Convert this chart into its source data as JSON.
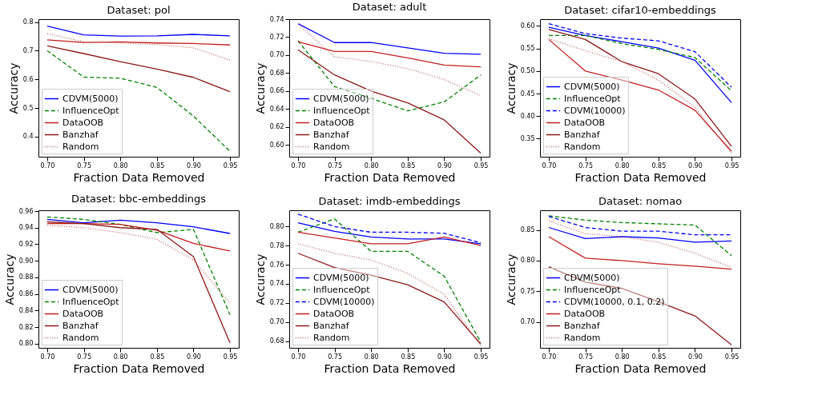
{
  "chart_data": [
    {
      "type": "line",
      "title": "Dataset: pol",
      "xlabel": "Fraction Data Removed",
      "ylabel": "Accuracy",
      "x": [
        0.7,
        0.75,
        0.8,
        0.85,
        0.9,
        0.95
      ],
      "xlim": [
        0.688,
        0.962
      ],
      "xticks": [
        {
          "value": 0.7,
          "label": "0.70"
        },
        {
          "value": 0.75,
          "label": "0.75"
        },
        {
          "value": 0.8,
          "label": "0.80"
        },
        {
          "value": 0.85,
          "label": "0.85"
        },
        {
          "value": 0.9,
          "label": "0.90"
        },
        {
          "value": 0.95,
          "label": "0.95"
        }
      ],
      "ylim": [
        0.33,
        0.81
      ],
      "yticks": [
        0.4,
        0.5,
        0.6,
        0.7,
        0.8
      ],
      "legend": "bottom left",
      "grid": false,
      "series": [
        {
          "name": "CDVM(5000)",
          "color": "#0000ff",
          "line_style": "solid",
          "values": [
            0.786,
            0.755,
            0.751,
            0.752,
            0.757,
            0.752
          ]
        },
        {
          "name": "InfluenceOpt",
          "color": "#008000",
          "line_style": "dashed",
          "values": [
            0.7,
            0.608,
            0.604,
            0.572,
            0.472,
            0.349
          ]
        },
        {
          "name": "DataOOB",
          "color": "#c02020",
          "line_style": "solid",
          "values": [
            0.738,
            0.729,
            0.731,
            0.727,
            0.725,
            0.72
          ]
        },
        {
          "name": "Banzhaf",
          "color": "#8b1a1a",
          "line_style": "solid",
          "values": [
            0.717,
            0.69,
            0.662,
            0.636,
            0.607,
            0.557
          ]
        },
        {
          "name": "Random",
          "color": "#c86464",
          "line_style": "dotted",
          "values": [
            0.76,
            0.731,
            0.727,
            0.722,
            0.71,
            0.667
          ]
        }
      ]
    },
    {
      "type": "line",
      "title": "Dataset: adult",
      "xlabel": "Fraction Data Removed",
      "ylabel": "Accuracy",
      "x": [
        0.7,
        0.75,
        0.8,
        0.85,
        0.9,
        0.95
      ],
      "xlim": [
        0.688,
        0.962
      ],
      "xticks": [
        {
          "value": 0.7,
          "label": "0.70"
        },
        {
          "value": 0.75,
          "label": "0.75"
        },
        {
          "value": 0.8,
          "label": "0.80"
        },
        {
          "value": 0.85,
          "label": "0.85"
        },
        {
          "value": 0.9,
          "label": "0.90"
        },
        {
          "value": 0.95,
          "label": "0.95"
        }
      ],
      "ylim": [
        0.587,
        0.74
      ],
      "yticks": [
        {
          "value": 0.6,
          "label": "0.60"
        },
        0.62,
        0.64,
        0.66,
        0.68,
        {
          "value": 0.7,
          "label": "0.70"
        },
        0.72,
        0.74
      ],
      "legend": "bottom left",
      "grid": false,
      "series": [
        {
          "name": "CDVM(5000)",
          "color": "#0000ff",
          "line_style": "solid",
          "values": [
            0.735,
            0.714,
            0.714,
            0.708,
            0.702,
            0.701
          ]
        },
        {
          "name": "InfluenceOpt",
          "color": "#008000",
          "line_style": "dashed",
          "values": [
            0.716,
            0.665,
            0.652,
            0.638,
            0.648,
            0.678
          ]
        },
        {
          "name": "DataOOB",
          "color": "#c02020",
          "line_style": "solid",
          "values": [
            0.715,
            0.704,
            0.704,
            0.697,
            0.689,
            0.687
          ]
        },
        {
          "name": "Banzhaf",
          "color": "#8b1a1a",
          "line_style": "solid",
          "values": [
            0.706,
            0.678,
            0.66,
            0.647,
            0.628,
            0.591
          ]
        },
        {
          "name": "Random",
          "color": "#c86464",
          "line_style": "dotted",
          "values": [
            0.735,
            0.698,
            0.693,
            0.685,
            0.673,
            0.655
          ]
        }
      ]
    },
    {
      "type": "line",
      "title": "Dataset: cifar10-embeddings",
      "xlabel": "Fraction Data Removed",
      "ylabel": "Accuracy",
      "x": [
        0.7,
        0.75,
        0.8,
        0.85,
        0.9,
        0.95
      ],
      "xlim": [
        0.688,
        0.962
      ],
      "xticks": [
        {
          "value": 0.7,
          "label": "0.70"
        },
        {
          "value": 0.75,
          "label": "0.75"
        },
        {
          "value": 0.8,
          "label": "0.80"
        },
        {
          "value": 0.85,
          "label": "0.85"
        },
        {
          "value": 0.9,
          "label": "0.90"
        },
        {
          "value": 0.95,
          "label": "0.95"
        }
      ],
      "ylim": [
        0.31,
        0.615
      ],
      "yticks": [
        0.35,
        {
          "value": 0.4,
          "label": "0.40"
        },
        0.45,
        {
          "value": 0.5,
          "label": "0.50"
        },
        0.55,
        {
          "value": 0.6,
          "label": "0.60"
        }
      ],
      "legend": "bottom left",
      "grid": false,
      "series": [
        {
          "name": "CDVM(5000)",
          "color": "#0000ff",
          "line_style": "solid",
          "values": [
            0.597,
            0.579,
            0.565,
            0.551,
            0.524,
            0.43
          ]
        },
        {
          "name": "InfluenceOpt",
          "color": "#008000",
          "line_style": "dashed",
          "values": [
            0.579,
            0.579,
            0.561,
            0.548,
            0.53,
            0.456
          ]
        },
        {
          "name": "CDVM(10000)",
          "color": "#0000ff",
          "line_style": "dashed",
          "values": [
            0.605,
            0.583,
            0.573,
            0.567,
            0.543,
            0.464
          ]
        },
        {
          "name": "DataOOB",
          "color": "#c02020",
          "line_style": "solid",
          "values": [
            0.57,
            0.5,
            0.48,
            0.458,
            0.413,
            0.322
          ]
        },
        {
          "name": "Banzhaf",
          "color": "#8b1a1a",
          "line_style": "solid",
          "values": [
            0.592,
            0.57,
            0.521,
            0.494,
            0.438,
            0.333
          ]
        },
        {
          "name": "Random",
          "color": "#c86464",
          "line_style": "dotted",
          "values": [
            0.572,
            0.545,
            0.521,
            0.48,
            0.42,
            0.317
          ]
        }
      ]
    },
    {
      "type": "line",
      "title": "Dataset: bbc-embeddings",
      "xlabel": "Fraction Data Removed",
      "ylabel": "Accuracy",
      "x": [
        0.7,
        0.75,
        0.8,
        0.85,
        0.9,
        0.95
      ],
      "xlim": [
        0.688,
        0.962
      ],
      "xticks": [
        {
          "value": 0.7,
          "label": "0.70"
        },
        {
          "value": 0.75,
          "label": "0.75"
        },
        {
          "value": 0.8,
          "label": "0.80"
        },
        {
          "value": 0.85,
          "label": "0.85"
        },
        {
          "value": 0.9,
          "label": "0.90"
        },
        {
          "value": 0.95,
          "label": "0.95"
        }
      ],
      "ylim": [
        0.795,
        0.961
      ],
      "yticks": [
        {
          "value": 0.8,
          "label": "0.80"
        },
        0.82,
        0.84,
        0.86,
        0.88,
        {
          "value": 0.9,
          "label": "0.90"
        },
        0.92,
        0.94,
        0.96
      ],
      "legend": "bottom left",
      "grid": false,
      "series": [
        {
          "name": "CDVM(5000)",
          "color": "#0000ff",
          "line_style": "solid",
          "values": [
            0.95,
            0.946,
            0.949,
            0.946,
            0.941,
            0.933
          ]
        },
        {
          "name": "InfluenceOpt",
          "color": "#008000",
          "line_style": "dashed",
          "values": [
            0.953,
            0.95,
            0.944,
            0.934,
            0.938,
            0.835
          ]
        },
        {
          "name": "DataOOB",
          "color": "#c02020",
          "line_style": "solid",
          "values": [
            0.945,
            0.945,
            0.944,
            0.937,
            0.921,
            0.912
          ]
        },
        {
          "name": "Banzhaf",
          "color": "#8b1a1a",
          "line_style": "solid",
          "values": [
            0.947,
            0.945,
            0.94,
            0.938,
            0.905,
            0.801
          ]
        },
        {
          "name": "Random",
          "color": "#c86464",
          "line_style": "dotted",
          "values": [
            0.943,
            0.94,
            0.934,
            0.926,
            0.901,
            0.849
          ]
        }
      ]
    },
    {
      "type": "line",
      "title": "Dataset: imdb-embeddings",
      "xlabel": "Fraction Data Removed",
      "ylabel": "Accuracy",
      "x": [
        0.7,
        0.75,
        0.8,
        0.85,
        0.9,
        0.95
      ],
      "xlim": [
        0.688,
        0.962
      ],
      "xticks": [
        {
          "value": 0.7,
          "label": "0.70"
        },
        {
          "value": 0.75,
          "label": "0.75"
        },
        {
          "value": 0.8,
          "label": "0.80"
        },
        {
          "value": 0.85,
          "label": "0.85"
        },
        {
          "value": 0.9,
          "label": "0.90"
        },
        {
          "value": 0.95,
          "label": "0.95"
        }
      ],
      "ylim": [
        0.673,
        0.817
      ],
      "yticks": [
        0.68,
        {
          "value": 0.7,
          "label": "0.70"
        },
        0.72,
        0.74,
        0.76,
        0.78,
        {
          "value": 0.8,
          "label": "0.80"
        }
      ],
      "legend": "bottom left",
      "grid": false,
      "series": [
        {
          "name": "CDVM(5000)",
          "color": "#0000ff",
          "line_style": "solid",
          "values": [
            0.804,
            0.795,
            0.789,
            0.787,
            0.787,
            0.782
          ]
        },
        {
          "name": "InfluenceOpt",
          "color": "#008000",
          "line_style": "dashed",
          "values": [
            0.794,
            0.808,
            0.774,
            0.774,
            0.748,
            0.679
          ]
        },
        {
          "name": "CDVM(10000)",
          "color": "#0000ff",
          "line_style": "dashed",
          "values": [
            0.813,
            0.8,
            0.794,
            0.794,
            0.793,
            0.783
          ]
        },
        {
          "name": "DataOOB",
          "color": "#c02020",
          "line_style": "solid",
          "values": [
            0.794,
            0.788,
            0.782,
            0.782,
            0.789,
            0.78
          ]
        },
        {
          "name": "Banzhaf",
          "color": "#8b1a1a",
          "line_style": "solid",
          "values": [
            0.772,
            0.757,
            0.749,
            0.739,
            0.721,
            0.677
          ]
        },
        {
          "name": "Random",
          "color": "#c86464",
          "line_style": "dotted",
          "values": [
            0.782,
            0.772,
            0.765,
            0.751,
            0.729,
            0.675
          ]
        }
      ]
    },
    {
      "type": "line",
      "title": "Dataset: nomao",
      "xlabel": "Fraction Data Removed",
      "ylabel": "Accuracy",
      "x": [
        0.7,
        0.75,
        0.8,
        0.85,
        0.9,
        0.95
      ],
      "xlim": [
        0.688,
        0.962
      ],
      "xticks": [
        {
          "value": 0.7,
          "label": "0.70"
        },
        {
          "value": 0.75,
          "label": "0.75"
        },
        {
          "value": 0.8,
          "label": "0.80"
        },
        {
          "value": 0.85,
          "label": "0.85"
        },
        {
          "value": 0.9,
          "label": "0.90"
        },
        {
          "value": 0.95,
          "label": "0.95"
        }
      ],
      "ylim": [
        0.658,
        0.882
      ],
      "yticks": [
        {
          "value": 0.7,
          "label": "0.70"
        },
        0.75,
        {
          "value": 0.8,
          "label": "0.80"
        },
        0.85
      ],
      "legend": "bottom left",
      "grid": false,
      "series": [
        {
          "name": "CDVM(5000)",
          "color": "#0000ff",
          "line_style": "solid",
          "values": [
            0.854,
            0.836,
            0.839,
            0.837,
            0.83,
            0.832
          ]
        },
        {
          "name": "InfluenceOpt",
          "color": "#008000",
          "line_style": "dashed",
          "values": [
            0.873,
            0.866,
            0.862,
            0.86,
            0.858,
            0.808
          ]
        },
        {
          "name": "CDVM(10000, 0.1, 0.2)",
          "color": "#0000ff",
          "line_style": "dashed",
          "values": [
            0.872,
            0.854,
            0.848,
            0.848,
            0.842,
            0.842
          ]
        },
        {
          "name": "DataOOB",
          "color": "#c02020",
          "line_style": "solid",
          "values": [
            0.839,
            0.804,
            0.8,
            0.795,
            0.791,
            0.786
          ]
        },
        {
          "name": "Banzhaf",
          "color": "#8b1a1a",
          "line_style": "solid",
          "values": [
            0.79,
            0.765,
            0.755,
            0.733,
            0.71,
            0.663
          ]
        },
        {
          "name": "Random",
          "color": "#c86464",
          "line_style": "dotted",
          "values": [
            0.865,
            0.844,
            0.839,
            0.83,
            0.812,
            0.789
          ]
        }
      ]
    }
  ]
}
